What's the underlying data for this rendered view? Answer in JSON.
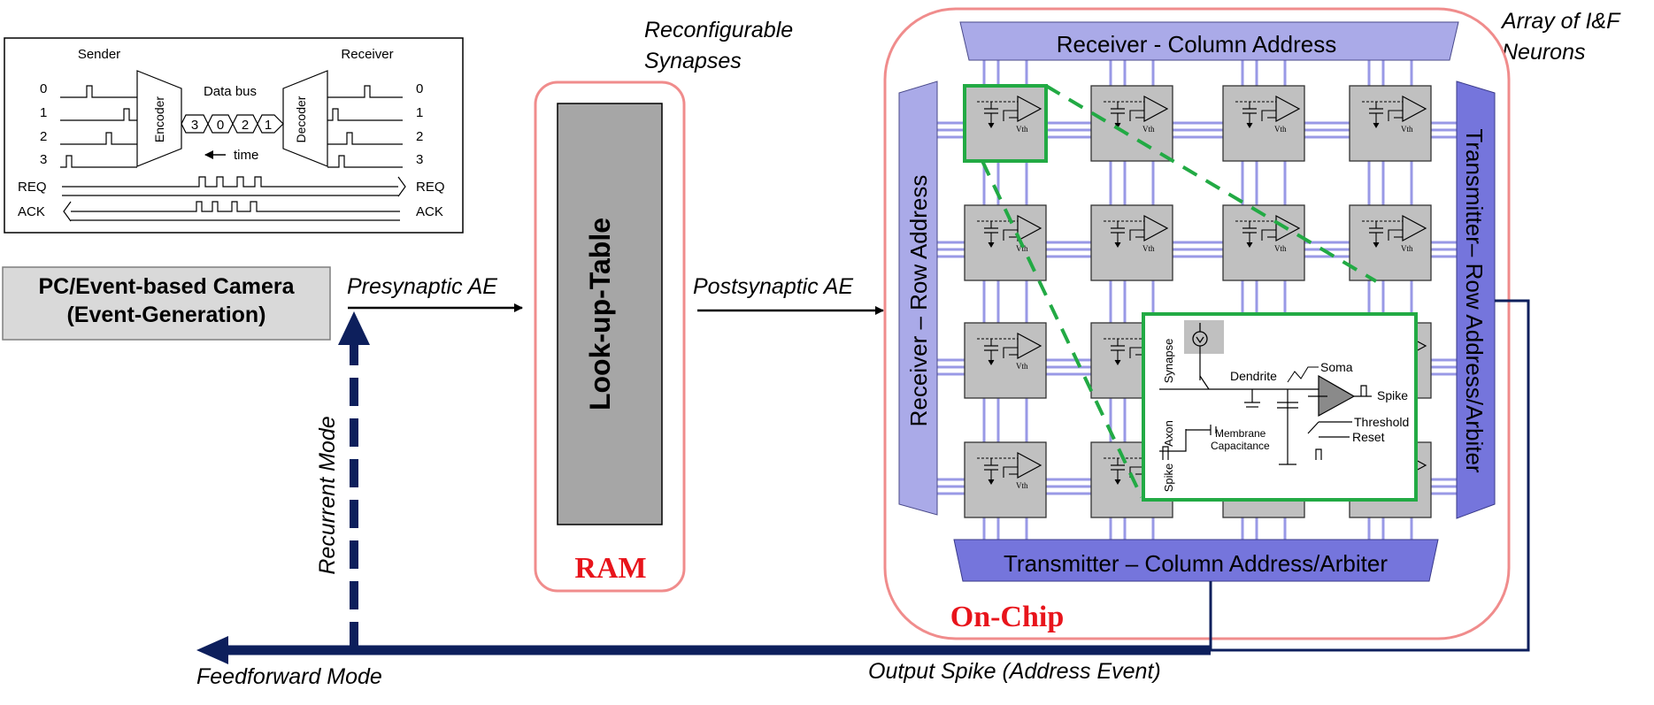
{
  "protocol": {
    "sender": "Sender",
    "receiver": "Receiver",
    "data_bus": "Data bus",
    "encoder": "Encoder",
    "decoder": "Decoder",
    "time": "time",
    "channels": [
      "0",
      "1",
      "2",
      "3"
    ],
    "req": "REQ",
    "ack": "ACK",
    "bus_values": [
      "3",
      "0",
      "2",
      "1"
    ]
  },
  "source_box": {
    "line1": "PC/Event-based Camera",
    "line2": "(Event-Generation)"
  },
  "labels": {
    "presynaptic": "Presynaptic AE",
    "postsynaptic": "Postsynaptic AE",
    "reconfigurable_1": "Reconfigurable",
    "reconfigurable_2": "Synapses",
    "array_1": "Array of I&F",
    "array_2": "Neurons",
    "recurrent": "Recurrent Mode",
    "feedforward": "Feedforward Mode",
    "output_spike": "Output Spike (Address Event)"
  },
  "ram": {
    "lut": "Look-up-Table",
    "label": "RAM"
  },
  "chip": {
    "label": "On-Chip",
    "receiver_column": "Receiver - Column Address",
    "receiver_row": "Receiver – Row Address",
    "transmitter_row": "Transmitter– Row Address/Arbiter",
    "transmitter_column": "Transmitter – Column Address/Arbiter",
    "neuron_vth": "Vth"
  },
  "neuron_detail": {
    "synapse": "Synapse",
    "dendrite": "Dendrite",
    "soma": "Soma",
    "spike_out": "Spike",
    "threshold": "Threshold",
    "reset": "Reset",
    "axon": "Axon",
    "spike_in": "Spike",
    "membrane_1": "Membrane",
    "membrane_2": "Capacitance"
  },
  "colors": {
    "navy": "#0d1f5c",
    "pink": "#f08c8c",
    "red_text": "#e8141b",
    "green": "#22aa44",
    "lavender": "#aaaae8",
    "lavender_dark": "#7575dc",
    "grid_line": "#9999e6",
    "gray_box": "#c0c0c0",
    "lut_gray": "#a6a6a6"
  }
}
